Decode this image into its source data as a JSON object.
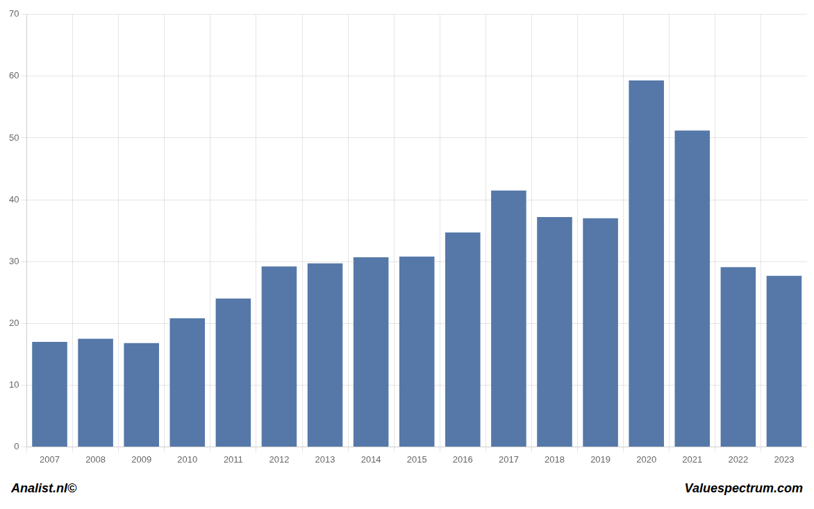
{
  "chart_data": {
    "type": "bar",
    "categories": [
      "2007",
      "2008",
      "2009",
      "2010",
      "2011",
      "2012",
      "2013",
      "2014",
      "2015",
      "2016",
      "2017",
      "2018",
      "2019",
      "2020",
      "2021",
      "2022",
      "2023"
    ],
    "values": [
      17.0,
      17.5,
      16.8,
      20.8,
      24.0,
      29.2,
      29.7,
      30.7,
      30.8,
      34.7,
      41.5,
      37.2,
      37.0,
      59.3,
      51.2,
      29.1,
      27.7
    ],
    "color": "#5578a8",
    "ylim": [
      0,
      70
    ],
    "yticks": [
      0,
      10,
      20,
      30,
      40,
      50,
      60,
      70
    ],
    "grid": true,
    "annotations": [
      "Analist.nl©",
      "Valuespectrum.com"
    ]
  }
}
